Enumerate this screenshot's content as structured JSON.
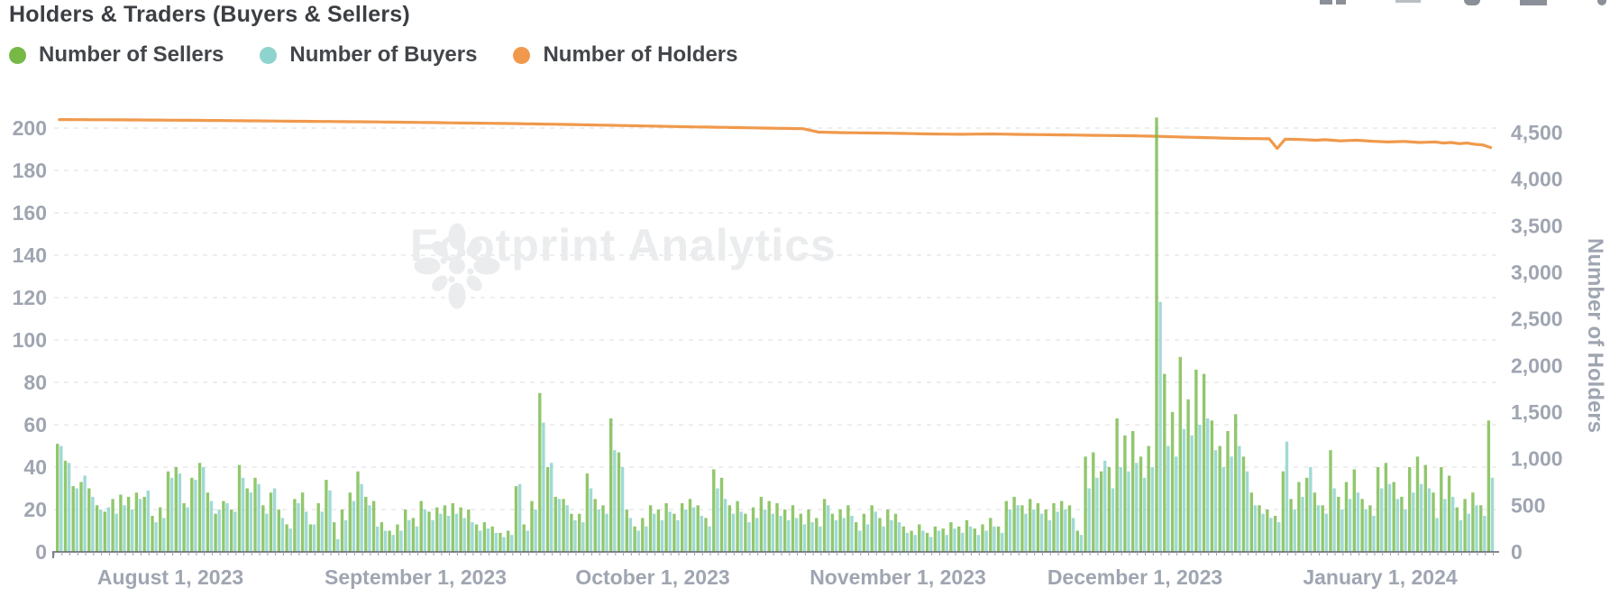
{
  "header": {
    "title": "Holders & Traders (Buyers & Sellers)"
  },
  "toolbar": {
    "icons": [
      "cropped-icon-1",
      "cropped-icon-2",
      "cropped-icon-3",
      "cropped-icon-4",
      "cropped-icon-5"
    ]
  },
  "legend": {
    "items": [
      {
        "label": "Number of Sellers",
        "color": "#76B947"
      },
      {
        "label": "Number of Buyers",
        "color": "#8FD3CE"
      },
      {
        "label": "Number of Holders",
        "color": "#F0994C"
      }
    ]
  },
  "watermark": {
    "text": "Footprint Analytics",
    "logo": "footprint-flower-logo",
    "color": "#EAECEE"
  },
  "chart_data": {
    "type": "combo",
    "title": "Holders & Traders (Buyers & Sellers)",
    "legend_position": "top-left",
    "grid": {
      "horizontal": true,
      "style": "dashed"
    },
    "start_date": "2023-07-18",
    "days": 182,
    "x_axis": {
      "tick_labels": [
        "August 1, 2023",
        "September 1, 2023",
        "October 1, 2023",
        "November 1, 2023",
        "December 1, 2023",
        "January 1, 2024"
      ],
      "tick_day_index": [
        14,
        45,
        75,
        106,
        136,
        167
      ]
    },
    "y_axis_left": {
      "min": 0,
      "max": 200,
      "step": 20,
      "tick_labels": [
        "0",
        "20",
        "40",
        "60",
        "80",
        "100",
        "120",
        "140",
        "160",
        "180",
        "200"
      ]
    },
    "y_axis_right": {
      "title": "Number of Holders",
      "min": 0,
      "max": 4500,
      "step": 500,
      "tick_labels": [
        "0",
        "500",
        "1,000",
        "1,500",
        "2,000",
        "2,500",
        "3,000",
        "3,500",
        "4,000",
        "4,500"
      ]
    },
    "series": [
      {
        "name": "Number of Sellers",
        "type": "bar",
        "axis": "left",
        "color": "#76B947",
        "values": [
          51,
          43,
          31,
          33,
          30,
          22,
          19,
          25,
          27,
          26,
          28,
          26,
          17,
          21,
          38,
          40,
          23,
          35,
          42,
          28,
          18,
          24,
          20,
          41,
          30,
          35,
          22,
          28,
          20,
          13,
          25,
          28,
          13,
          23,
          34,
          14,
          20,
          28,
          38,
          26,
          24,
          14,
          10,
          13,
          20,
          16,
          24,
          19,
          21,
          22,
          23,
          21,
          20,
          13,
          14,
          12,
          9,
          10,
          31,
          13,
          24,
          75,
          40,
          26,
          25,
          18,
          18,
          37,
          25,
          22,
          63,
          47,
          20,
          12,
          16,
          22,
          20,
          23,
          18,
          23,
          25,
          22,
          16,
          39,
          35,
          22,
          24,
          18,
          21,
          26,
          24,
          23,
          20,
          22,
          18,
          20,
          16,
          25,
          18,
          20,
          22,
          14,
          18,
          22,
          16,
          20,
          18,
          12,
          10,
          13,
          9,
          12,
          11,
          14,
          12,
          15,
          11,
          13,
          16,
          12,
          24,
          26,
          22,
          25,
          23,
          20,
          23,
          24,
          22,
          10,
          45,
          47,
          38,
          40,
          63,
          55,
          57,
          45,
          50,
          205,
          84,
          66,
          92,
          72,
          86,
          84,
          62,
          50,
          57,
          65,
          45,
          28,
          22,
          20,
          17,
          38,
          25,
          33,
          35,
          28,
          22,
          48,
          26,
          33,
          39,
          25,
          22,
          40,
          42,
          33,
          26,
          40,
          45,
          41,
          28,
          40,
          36,
          21,
          25,
          28,
          22,
          62
        ]
      },
      {
        "name": "Number of Buyers",
        "type": "bar",
        "axis": "left",
        "color": "#8FD3CE",
        "values": [
          50,
          42,
          30,
          36,
          26,
          20,
          21,
          18,
          22,
          20,
          25,
          29,
          14,
          16,
          35,
          37,
          21,
          34,
          40,
          24,
          20,
          23,
          19,
          35,
          28,
          32,
          18,
          30,
          16,
          11,
          23,
          19,
          13,
          19,
          29,
          6,
          15,
          24,
          32,
          22,
          12,
          10,
          8,
          10,
          15,
          12,
          20,
          15,
          18,
          17,
          18,
          16,
          14,
          10,
          11,
          9,
          7,
          8,
          32,
          10,
          20,
          61,
          42,
          25,
          22,
          15,
          14,
          30,
          20,
          18,
          48,
          40,
          16,
          10,
          12,
          18,
          15,
          19,
          15,
          20,
          21,
          17,
          12,
          30,
          25,
          18,
          19,
          14,
          16,
          20,
          18,
          17,
          15,
          16,
          13,
          14,
          12,
          22,
          15,
          16,
          17,
          10,
          13,
          19,
          12,
          15,
          14,
          9,
          8,
          10,
          7,
          10,
          8,
          11,
          9,
          12,
          8,
          10,
          12,
          9,
          20,
          22,
          18,
          20,
          18,
          15,
          19,
          20,
          16,
          8,
          30,
          35,
          43,
          30,
          40,
          38,
          42,
          35,
          40,
          118,
          50,
          45,
          58,
          55,
          60,
          63,
          48,
          40,
          45,
          50,
          38,
          22,
          18,
          16,
          14,
          52,
          20,
          26,
          40,
          22,
          18,
          30,
          20,
          25,
          28,
          20,
          17,
          30,
          32,
          25,
          20,
          28,
          32,
          30,
          16,
          25,
          26,
          15,
          18,
          22,
          17,
          35
        ]
      },
      {
        "name": "Number of Holders",
        "type": "line",
        "axis": "right",
        "color": "#F0994C",
        "anchor_days": [
          0,
          10,
          20,
          30,
          40,
          45,
          52,
          58,
          64,
          70,
          75,
          80,
          85,
          90,
          94,
          96,
          99,
          103,
          106,
          110,
          114,
          118,
          122,
          126,
          130,
          134,
          137,
          139,
          141,
          143,
          145,
          147,
          149,
          151,
          153,
          154,
          155,
          157,
          159,
          160,
          162,
          164,
          166,
          168,
          170,
          172,
          174,
          175,
          176,
          177,
          178,
          179,
          180,
          181
        ],
        "anchor_values": [
          4640,
          4636,
          4630,
          4622,
          4615,
          4610,
          4602,
          4596,
          4588,
          4578,
          4570,
          4562,
          4555,
          4548,
          4542,
          4505,
          4500,
          4496,
          4492,
          4486,
          4482,
          4486,
          4480,
          4476,
          4472,
          4468,
          4464,
          4460,
          4455,
          4450,
          4446,
          4442,
          4438,
          4436,
          4434,
          4330,
          4430,
          4426,
          4418,
          4424,
          4412,
          4418,
          4408,
          4400,
          4406,
          4394,
          4400,
          4388,
          4394,
          4382,
          4388,
          4375,
          4368,
          4340
        ]
      }
    ]
  }
}
